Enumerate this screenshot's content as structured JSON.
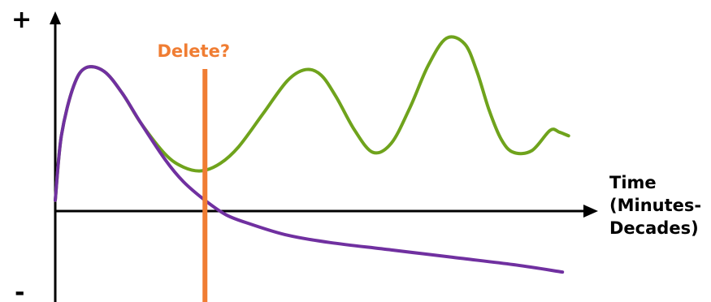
{
  "chart_data": {
    "type": "line",
    "title": "",
    "xlabel": [
      "Time",
      "(Minutes-",
      "Decades)"
    ],
    "ylabel": "",
    "y_axis_marks": {
      "top": "+",
      "bottom": "-"
    },
    "ticks_shown": false,
    "grid": false,
    "legend": "none",
    "annotation": {
      "label": "Delete?",
      "type": "vertical-line",
      "x": 0.245,
      "color": "#F07D33"
    },
    "xlim": [
      0,
      1
    ],
    "ylim": [
      -0.5,
      1.0
    ],
    "series": [
      {
        "color": "#6FA31C",
        "x": [
          0.0,
          0.01,
          0.03,
          0.05,
          0.08,
          0.11,
          0.14,
          0.18,
          0.21,
          0.24,
          0.27,
          0.3,
          0.34,
          0.38,
          0.41,
          0.435,
          0.46,
          0.49,
          0.52,
          0.55,
          0.58,
          0.61,
          0.64,
          0.67,
          0.69,
          0.71,
          0.73,
          0.75,
          0.78,
          0.81,
          0.825,
          0.84
        ],
        "y": [
          0.0,
          0.35,
          0.62,
          0.72,
          0.7,
          0.58,
          0.42,
          0.25,
          0.18,
          0.16,
          0.2,
          0.29,
          0.47,
          0.65,
          0.71,
          0.68,
          0.56,
          0.38,
          0.26,
          0.31,
          0.5,
          0.73,
          0.88,
          0.85,
          0.7,
          0.49,
          0.33,
          0.26,
          0.27,
          0.38,
          0.37,
          0.35
        ]
      },
      {
        "color": "#7030A0",
        "x": [
          0.0,
          0.01,
          0.03,
          0.05,
          0.08,
          0.11,
          0.14,
          0.18,
          0.21,
          0.245,
          0.28,
          0.32,
          0.38,
          0.45,
          0.55,
          0.65,
          0.75,
          0.83
        ],
        "y": [
          0.0,
          0.35,
          0.62,
          0.72,
          0.7,
          0.58,
          0.42,
          0.22,
          0.1,
          0.0,
          -0.08,
          -0.13,
          -0.19,
          -0.23,
          -0.27,
          -0.31,
          -0.35,
          -0.39
        ]
      }
    ]
  }
}
